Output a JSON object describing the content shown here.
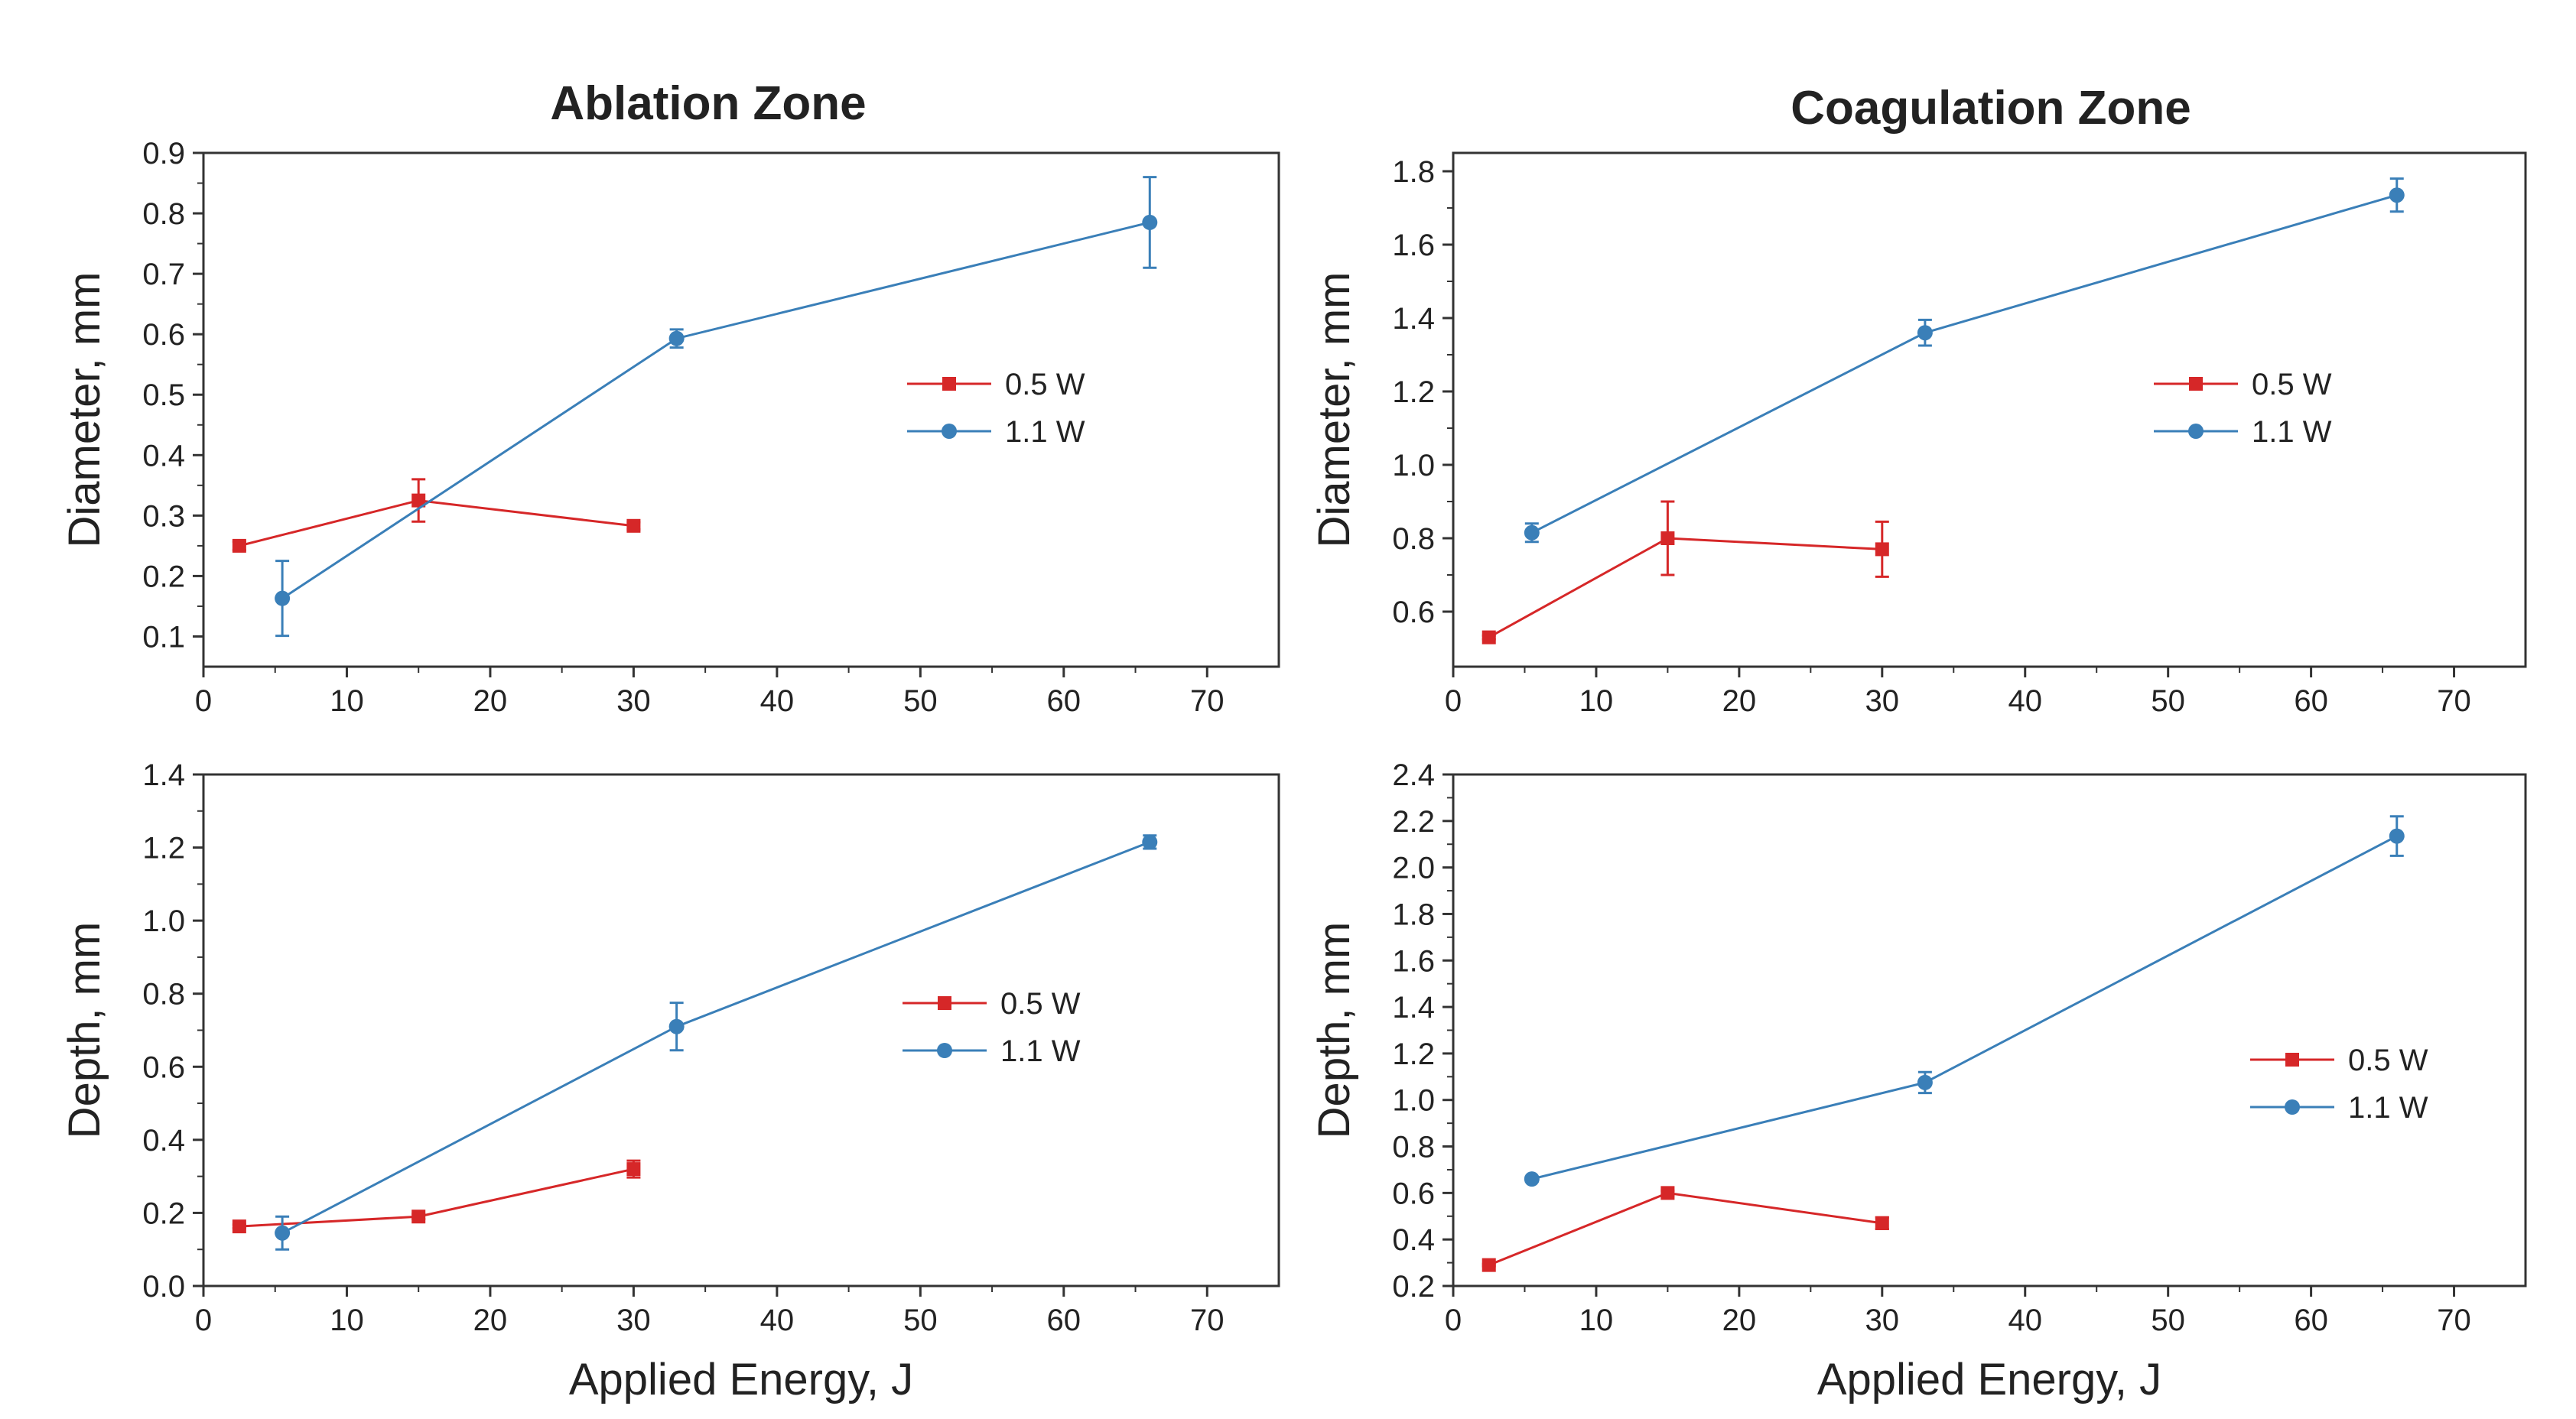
{
  "titles": {
    "ablation": "Ablation Zone",
    "coagulation": "Coagulation Zone"
  },
  "x_axis_label": "Applied Energy, J",
  "colors": {
    "red": "#d62728",
    "blue": "#3a7fb8",
    "axis": "#333333"
  },
  "chart_data": [
    {
      "id": "ablation-diameter",
      "type": "line",
      "title": "Ablation Zone",
      "xlabel": "",
      "ylabel": "Diameter, mm",
      "xlim": [
        0,
        75
      ],
      "ylim": [
        0.05,
        0.9
      ],
      "xticks": [
        0,
        10,
        20,
        30,
        40,
        50,
        60,
        70
      ],
      "yticks": [
        0.1,
        0.2,
        0.3,
        0.4,
        0.5,
        0.6,
        0.7,
        0.8,
        0.9
      ],
      "tick_decimals": 1,
      "legend": "center-right",
      "series": [
        {
          "name": "0.5 W",
          "color": "#d62728",
          "marker": "square",
          "x": [
            2.5,
            15,
            30
          ],
          "y": [
            0.25,
            0.325,
            0.283
          ],
          "err": [
            0.007,
            0.035,
            0.006
          ]
        },
        {
          "name": "1.1 W",
          "color": "#3a7fb8",
          "marker": "circle",
          "x": [
            5.5,
            33,
            66
          ],
          "y": [
            0.163,
            0.593,
            0.785
          ],
          "err": [
            0.062,
            0.015,
            0.075
          ]
        }
      ]
    },
    {
      "id": "coagulation-diameter",
      "type": "line",
      "title": "Coagulation Zone",
      "xlabel": "",
      "ylabel": "Diameter, mm",
      "xlim": [
        0,
        75
      ],
      "ylim": [
        0.45,
        1.85
      ],
      "xticks": [
        0,
        10,
        20,
        30,
        40,
        50,
        60,
        70
      ],
      "yticks": [
        0.6,
        0.8,
        1.0,
        1.2,
        1.4,
        1.6,
        1.8
      ],
      "tick_decimals": 1,
      "legend": "center-right",
      "series": [
        {
          "name": "0.5 W",
          "color": "#d62728",
          "marker": "square",
          "x": [
            2.5,
            15,
            30
          ],
          "y": [
            0.53,
            0.8,
            0.77
          ],
          "err": [
            0.005,
            0.1,
            0.075
          ]
        },
        {
          "name": "1.1 W",
          "color": "#3a7fb8",
          "marker": "circle",
          "x": [
            5.5,
            33,
            66
          ],
          "y": [
            0.815,
            1.36,
            1.735
          ],
          "err": [
            0.025,
            0.035,
            0.045
          ]
        }
      ]
    },
    {
      "id": "ablation-depth",
      "type": "line",
      "title": "",
      "xlabel": "Applied Energy, J",
      "ylabel": "Depth, mm",
      "xlim": [
        0,
        75
      ],
      "ylim": [
        0.0,
        1.4
      ],
      "xticks": [
        0,
        10,
        20,
        30,
        40,
        50,
        60,
        70
      ],
      "yticks": [
        0.0,
        0.2,
        0.4,
        0.6,
        0.8,
        1.0,
        1.2,
        1.4
      ],
      "tick_decimals": 1,
      "legend": "center-right",
      "series": [
        {
          "name": "0.5 W",
          "color": "#d62728",
          "marker": "square",
          "x": [
            2.5,
            15,
            30
          ],
          "y": [
            0.163,
            0.19,
            0.32
          ],
          "err": [
            0.005,
            0.007,
            0.023
          ]
        },
        {
          "name": "1.1 W",
          "color": "#3a7fb8",
          "marker": "circle",
          "x": [
            5.5,
            33,
            66
          ],
          "y": [
            0.145,
            0.71,
            1.215
          ],
          "err": [
            0.045,
            0.065,
            0.018
          ]
        }
      ]
    },
    {
      "id": "coagulation-depth",
      "type": "line",
      "title": "",
      "xlabel": "Applied Energy, J",
      "ylabel": "Depth, mm",
      "xlim": [
        0,
        75
      ],
      "ylim": [
        0.2,
        2.4
      ],
      "xticks": [
        0,
        10,
        20,
        30,
        40,
        50,
        60,
        70
      ],
      "yticks": [
        0.2,
        0.4,
        0.6,
        0.8,
        1.0,
        1.2,
        1.4,
        1.6,
        1.8,
        2.0,
        2.2,
        2.4
      ],
      "tick_decimals": 1,
      "legend": "center-right",
      "series": [
        {
          "name": "0.5 W",
          "color": "#d62728",
          "marker": "square",
          "x": [
            2.5,
            15,
            30
          ],
          "y": [
            0.29,
            0.6,
            0.47
          ],
          "err": [
            0.005,
            0.01,
            0.025
          ]
        },
        {
          "name": "1.1 W",
          "color": "#3a7fb8",
          "marker": "circle",
          "x": [
            5.5,
            33,
            66
          ],
          "y": [
            0.66,
            1.075,
            2.135
          ],
          "err": [
            0.01,
            0.045,
            0.085
          ]
        }
      ]
    }
  ]
}
